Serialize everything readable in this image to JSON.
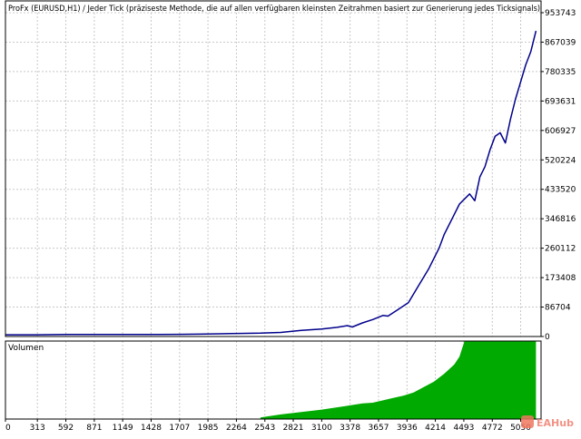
{
  "chart_data": [
    {
      "type": "line",
      "title": "ProFx (EURUSD,H1) / Jeder Tick (präziseste Methode, die auf allen verfügbaren kleinsten Zeitrahmen basiert zur Generierung jedes Ticksignals)",
      "ylim": [
        0,
        953743
      ],
      "y_tick_labels": [
        "953743",
        "867039",
        "780335",
        "693631",
        "606927",
        "520224",
        "433520",
        "346816",
        "260112",
        "173408",
        "86704",
        "0"
      ],
      "x_ticks": [
        0,
        313,
        592,
        871,
        1149,
        1428,
        1707,
        1985,
        2264,
        2543,
        2821,
        3100,
        3378,
        3657,
        3936,
        4214,
        4493,
        4772,
        5050
      ],
      "x_tick_labels": [
        "0",
        "313",
        "592",
        "871",
        "1149",
        "1428",
        "1707",
        "1985",
        "2264",
        "2543",
        "2821",
        "3100",
        "3378",
        "3657",
        "3936",
        "4214",
        "4493",
        "4772",
        "5050"
      ],
      "xlim": [
        0,
        5250
      ],
      "grid": true,
      "colors": {
        "line": "#00008b",
        "grid": "#c8c8c8",
        "frame": "#000000"
      },
      "series": [
        {
          "name": "",
          "x": [
            0,
            300,
            600,
            900,
            1200,
            1500,
            1700,
            1900,
            2100,
            2300,
            2500,
            2700,
            2900,
            3100,
            3250,
            3350,
            3400,
            3500,
            3600,
            3700,
            3750,
            3850,
            3950,
            4050,
            4150,
            4250,
            4300,
            4400,
            4450,
            4550,
            4600,
            4650,
            4700,
            4750,
            4800,
            4850,
            4900,
            4950,
            5000,
            5050,
            5100,
            5150,
            5200
          ],
          "y": [
            5000,
            5000,
            6000,
            6000,
            6000,
            6000,
            6500,
            7000,
            8000,
            9000,
            10000,
            12000,
            18000,
            22000,
            27000,
            32000,
            28000,
            40000,
            50000,
            62000,
            60000,
            80000,
            100000,
            150000,
            200000,
            260000,
            300000,
            360000,
            390000,
            420000,
            400000,
            470000,
            500000,
            550000,
            590000,
            600000,
            570000,
            640000,
            700000,
            750000,
            800000,
            840000,
            900000
          ]
        }
      ]
    },
    {
      "type": "area",
      "title": "Volumen",
      "ylim": [
        0,
        100
      ],
      "colors": {
        "fill": "#00aa00"
      },
      "series": [
        {
          "name": "",
          "x": [
            2500,
            2550,
            2700,
            2900,
            3100,
            3300,
            3500,
            3600,
            3700,
            3800,
            3900,
            4000,
            4100,
            4200,
            4300,
            4350,
            4400,
            4450,
            4500,
            4550,
            5150,
            5200
          ],
          "y": [
            2,
            3,
            6,
            9,
            12,
            16,
            20,
            21,
            24,
            27,
            30,
            34,
            41,
            48,
            58,
            64,
            70,
            80,
            100,
            100,
            100,
            100
          ]
        }
      ]
    }
  ],
  "watermark": {
    "text": "EAHub"
  }
}
